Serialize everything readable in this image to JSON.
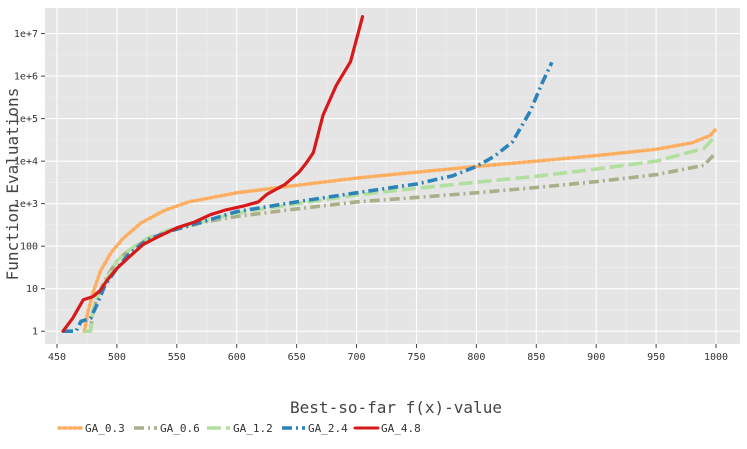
{
  "chart_data": {
    "type": "line",
    "xlabel": "Best-so-far f(x)-value",
    "ylabel": "Function Evaluations",
    "x_ticks": [
      450,
      500,
      550,
      600,
      650,
      700,
      750,
      800,
      850,
      900,
      950,
      1000
    ],
    "y_ticks": [
      {
        "value": 1,
        "label": "1"
      },
      {
        "value": 10,
        "label": "10"
      },
      {
        "value": 100,
        "label": "100"
      },
      {
        "value": 1000,
        "label": "1e+3"
      },
      {
        "value": 10000,
        "label": "1e+4"
      },
      {
        "value": 100000,
        "label": "1e+5"
      },
      {
        "value": 1000000,
        "label": "1e+6"
      },
      {
        "value": 10000000,
        "label": "1e+7"
      }
    ],
    "xlim": [
      440,
      1020
    ],
    "ylim": [
      0.5,
      40000000
    ],
    "y_scale": "log",
    "grid": true,
    "background": "#e5e5e5",
    "legend_position": "bottom",
    "series": [
      {
        "name": "GA_0.3",
        "color": "#fdae61",
        "style": "dotted",
        "points": [
          [
            473,
            1
          ],
          [
            476,
            3
          ],
          [
            480,
            8
          ],
          [
            486,
            25
          ],
          [
            495,
            70
          ],
          [
            505,
            150
          ],
          [
            520,
            350
          ],
          [
            540,
            700
          ],
          [
            560,
            1100
          ],
          [
            600,
            1800
          ],
          [
            650,
            2700
          ],
          [
            700,
            4000
          ],
          [
            750,
            5500
          ],
          [
            800,
            7500
          ],
          [
            850,
            10000
          ],
          [
            900,
            13500
          ],
          [
            950,
            19000
          ],
          [
            980,
            27000
          ],
          [
            995,
            40000
          ],
          [
            1000,
            58000
          ]
        ]
      },
      {
        "name": "GA_0.6",
        "color": "#abae88",
        "style": "dashdot",
        "points": [
          [
            478,
            1
          ],
          [
            480,
            3
          ],
          [
            485,
            8
          ],
          [
            492,
            20
          ],
          [
            500,
            45
          ],
          [
            510,
            80
          ],
          [
            525,
            140
          ],
          [
            545,
            230
          ],
          [
            575,
            380
          ],
          [
            600,
            500
          ],
          [
            650,
            750
          ],
          [
            700,
            1100
          ],
          [
            750,
            1400
          ],
          [
            800,
            1800
          ],
          [
            850,
            2400
          ],
          [
            900,
            3300
          ],
          [
            950,
            4800
          ],
          [
            990,
            8000
          ],
          [
            1000,
            16000
          ]
        ]
      },
      {
        "name": "GA_1.2",
        "color": "#b2dfa0",
        "style": "longdash",
        "points": [
          [
            473,
            1
          ],
          [
            478,
            1
          ],
          [
            480,
            3
          ],
          [
            485,
            8
          ],
          [
            493,
            20
          ],
          [
            500,
            45
          ],
          [
            510,
            80
          ],
          [
            525,
            150
          ],
          [
            545,
            250
          ],
          [
            575,
            400
          ],
          [
            600,
            600
          ],
          [
            650,
            1000
          ],
          [
            700,
            1600
          ],
          [
            750,
            2300
          ],
          [
            800,
            3200
          ],
          [
            850,
            4400
          ],
          [
            900,
            6500
          ],
          [
            950,
            10000
          ],
          [
            990,
            20000
          ],
          [
            1000,
            40000
          ]
        ]
      },
      {
        "name": "GA_2.4",
        "color": "#2b83ba",
        "style": "dashdot",
        "points": [
          [
            455,
            1
          ],
          [
            466,
            1
          ],
          [
            470,
            1.7
          ],
          [
            478,
            2
          ],
          [
            483,
            4
          ],
          [
            490,
            12
          ],
          [
            500,
            30
          ],
          [
            510,
            65
          ],
          [
            525,
            140
          ],
          [
            545,
            230
          ],
          [
            575,
            400
          ],
          [
            600,
            650
          ],
          [
            650,
            1100
          ],
          [
            700,
            1800
          ],
          [
            750,
            2900
          ],
          [
            780,
            4500
          ],
          [
            800,
            7500
          ],
          [
            815,
            13000
          ],
          [
            830,
            28000
          ],
          [
            845,
            150000
          ],
          [
            855,
            700000
          ],
          [
            863,
            2100000
          ]
        ]
      },
      {
        "name": "GA_4.8",
        "color": "#d7191c",
        "style": "solid",
        "points": [
          [
            455,
            1
          ],
          [
            463,
            2
          ],
          [
            472,
            5.5
          ],
          [
            480,
            6.5
          ],
          [
            486,
            9
          ],
          [
            492,
            16
          ],
          [
            500,
            30
          ],
          [
            510,
            55
          ],
          [
            522,
            110
          ],
          [
            535,
            170
          ],
          [
            550,
            270
          ],
          [
            565,
            370
          ],
          [
            578,
            550
          ],
          [
            590,
            700
          ],
          [
            605,
            870
          ],
          [
            618,
            1100
          ],
          [
            625,
            1650
          ],
          [
            640,
            2800
          ],
          [
            652,
            5500
          ],
          [
            658,
            9000
          ],
          [
            664,
            16000
          ],
          [
            672,
            120000
          ],
          [
            683,
            600000
          ],
          [
            695,
            2200000
          ],
          [
            705,
            25000000
          ]
        ]
      }
    ]
  }
}
